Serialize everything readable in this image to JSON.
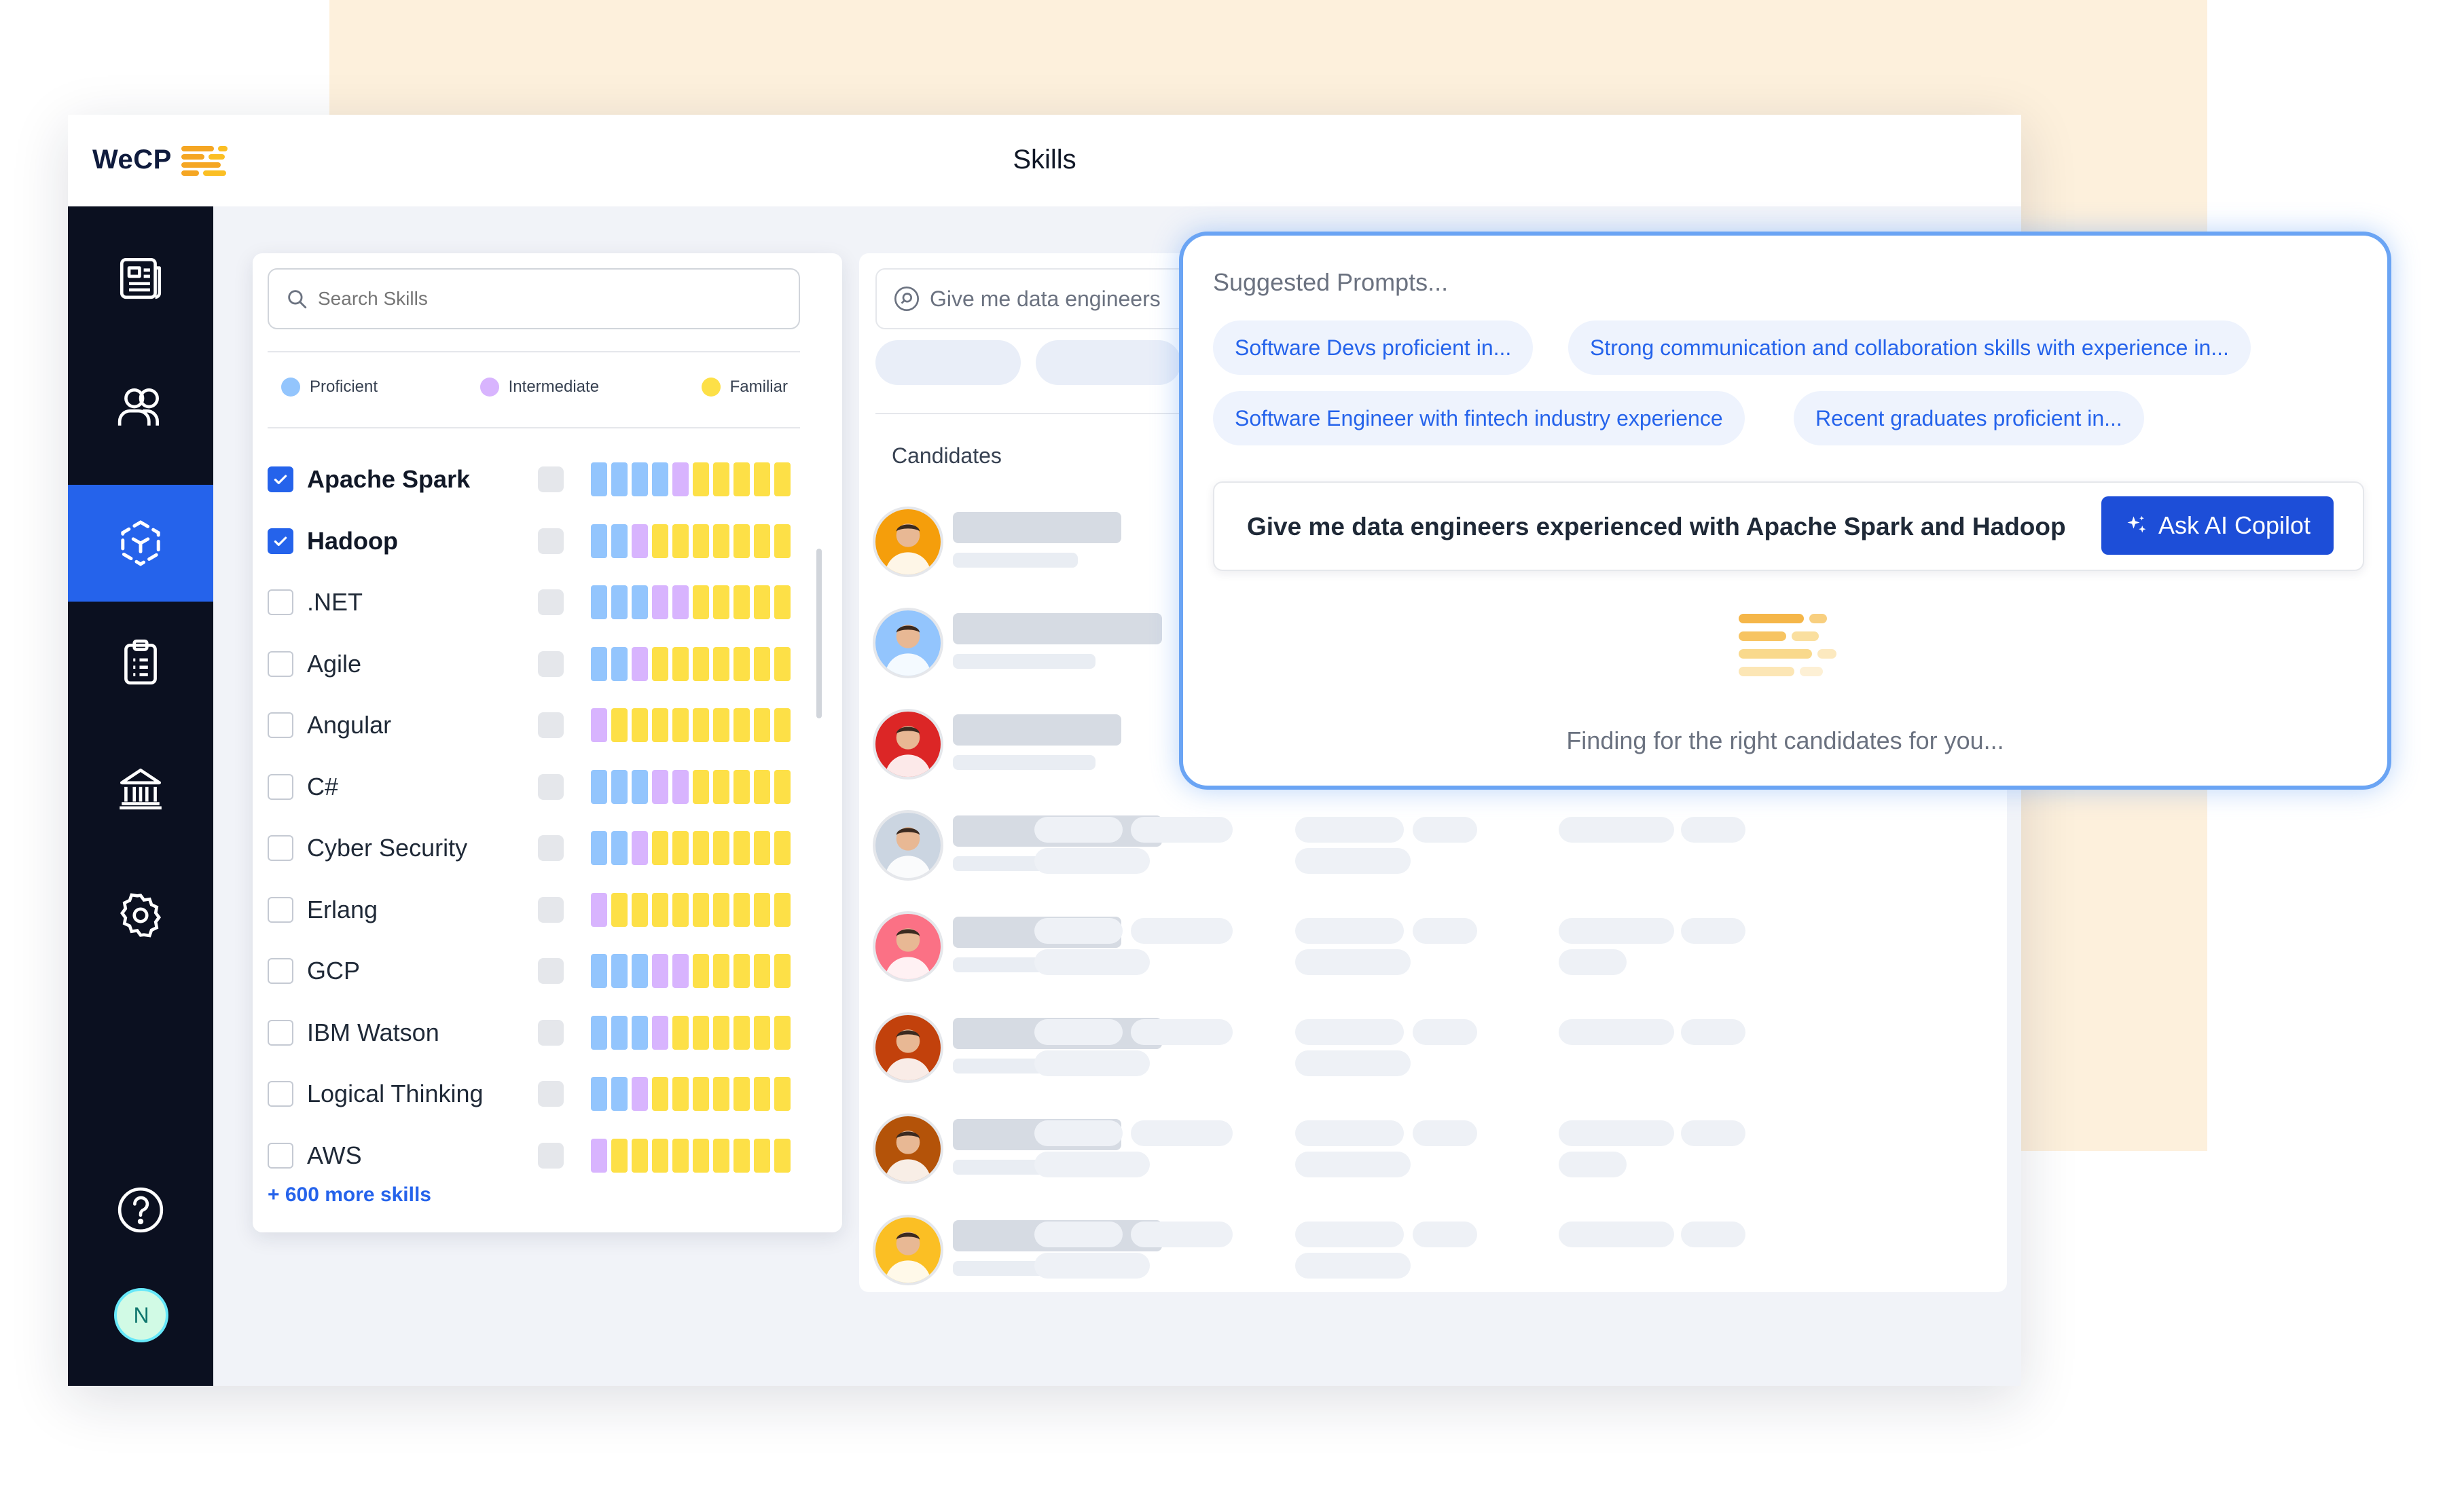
{
  "app": {
    "logo_text": "WeCP",
    "page_title": "Skills"
  },
  "colors": {
    "accent": "#2563eb",
    "proficient": "#93c5fd",
    "intermediate": "#d8b4fe",
    "familiar": "#fde047",
    "sidebar_bg": "#0b1020"
  },
  "sidebar": {
    "items": [
      {
        "icon": "document-icon",
        "active": false
      },
      {
        "icon": "users-icon",
        "active": false
      },
      {
        "icon": "skills-hub-icon",
        "active": true
      },
      {
        "icon": "clipboard-icon",
        "active": false
      },
      {
        "icon": "institution-icon",
        "active": false
      },
      {
        "icon": "gear-icon",
        "active": false
      }
    ],
    "help_icon": "help-circle-icon",
    "user_initial": "N"
  },
  "skills": {
    "search_placeholder": "Search Skills",
    "legend": [
      {
        "label": "Proficient",
        "color": "#93c5fd"
      },
      {
        "label": "Intermediate",
        "color": "#d8b4fe"
      },
      {
        "label": "Familiar",
        "color": "#fde047"
      }
    ],
    "items": [
      {
        "name": "Apache Spark",
        "checked": true,
        "levels": [
          4,
          1,
          5
        ]
      },
      {
        "name": "Hadoop",
        "checked": true,
        "levels": [
          2,
          1,
          7
        ]
      },
      {
        "name": ".NET",
        "checked": false,
        "levels": [
          3,
          2,
          5
        ]
      },
      {
        "name": "Agile",
        "checked": false,
        "levels": [
          2,
          1,
          7
        ]
      },
      {
        "name": "Angular",
        "checked": false,
        "levels": [
          0,
          1,
          9
        ]
      },
      {
        "name": "C#",
        "checked": false,
        "levels": [
          3,
          2,
          5
        ]
      },
      {
        "name": "Cyber Security",
        "checked": false,
        "levels": [
          2,
          1,
          7
        ]
      },
      {
        "name": "Erlang",
        "checked": false,
        "levels": [
          0,
          1,
          9
        ]
      },
      {
        "name": "GCP",
        "checked": false,
        "levels": [
          3,
          2,
          5
        ]
      },
      {
        "name": "IBM Watson",
        "checked": false,
        "levels": [
          3,
          1,
          6
        ]
      },
      {
        "name": "Logical Thinking",
        "checked": false,
        "levels": [
          2,
          1,
          7
        ]
      },
      {
        "name": "AWS",
        "checked": false,
        "levels": [
          0,
          1,
          9
        ]
      }
    ],
    "more_link": "+ 600 more skills"
  },
  "candidates": {
    "search_value": "Give me data engineers",
    "title": "Candidates",
    "avatars": [
      "#f59e0b",
      "#93c5fd",
      "#dc2626",
      "#cbd5e1",
      "#fb7185",
      "#c2410c",
      "#b45309",
      "#fbbf24"
    ]
  },
  "copilot": {
    "suggested_title": "Suggested Prompts...",
    "prompts": [
      "Software Devs proficient in...",
      "Strong communication and collaboration skills with experience in...",
      "Software Engineer with fintech industry experience",
      "Recent graduates proficient in..."
    ],
    "query": "Give me data engineers experienced with Apache Spark and Hadoop",
    "ask_button": "Ask AI Copilot",
    "status": "Finding for the right candidates for you..."
  }
}
